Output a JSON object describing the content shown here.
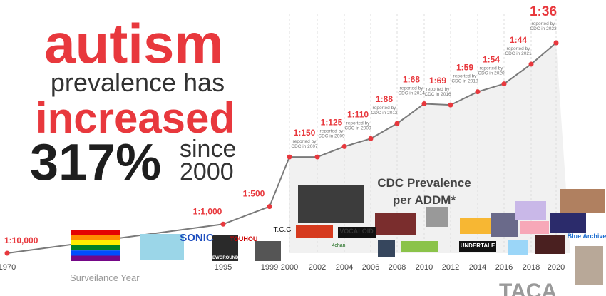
{
  "headline": {
    "line1": "autism",
    "line2": "prevalence has",
    "line3": "increased",
    "percent": "317%",
    "since": "since",
    "year": "2000"
  },
  "chart_data": {
    "type": "line",
    "x": [
      1970,
      1995,
      1999,
      2000,
      2002,
      2004,
      2006,
      2008,
      2010,
      2012,
      2014,
      2016,
      2018,
      2020
    ],
    "values": [
      10000,
      1000,
      500,
      150,
      150,
      125,
      110,
      88,
      68,
      69,
      59,
      54,
      44,
      36
    ],
    "value_labels": [
      "1:10,000",
      "1:1,000",
      "1:500",
      null,
      "1:150",
      "1:125",
      "1:110",
      "1:88",
      "1:68",
      "1:69",
      "1:59",
      "1:54",
      "1:44",
      "1:36"
    ],
    "notes": [
      null,
      null,
      null,
      null,
      [
        "reported by",
        "CDC in 2007"
      ],
      [
        "reported by",
        "CDC in 2009"
      ],
      [
        "reported by",
        "CDC in 2009"
      ],
      [
        "reported by",
        "CDC in 2012"
      ],
      [
        "reported by",
        "CDC in 2014"
      ],
      [
        "reported by",
        "CDC in 2016"
      ],
      [
        "reported by",
        "CDC in 2018"
      ],
      [
        "reported by",
        "CDC in 2020"
      ],
      [
        "reported by",
        "CDC in 2021"
      ],
      [
        "reported by",
        "CDC in 2023"
      ]
    ],
    "xticks": [
      1970,
      1995,
      1999,
      2000,
      2002,
      2004,
      2006,
      2008,
      2010,
      2012,
      2014,
      2016,
      2018,
      2020
    ],
    "series_label": [
      "CDC Prevalence",
      "per ADDM*"
    ],
    "xlabel": "Surveilance Year",
    "color": "#e8383d",
    "line_color": "#7a7a7a",
    "grid": true
  },
  "logos": [
    "SONIC",
    "TOUHOU",
    "NEWGROUNDS",
    "T.C.C",
    "VOCALOID",
    "4chan",
    "UNDERTALE",
    "Blue Archive"
  ],
  "footer": {
    "brand": "TACA"
  }
}
